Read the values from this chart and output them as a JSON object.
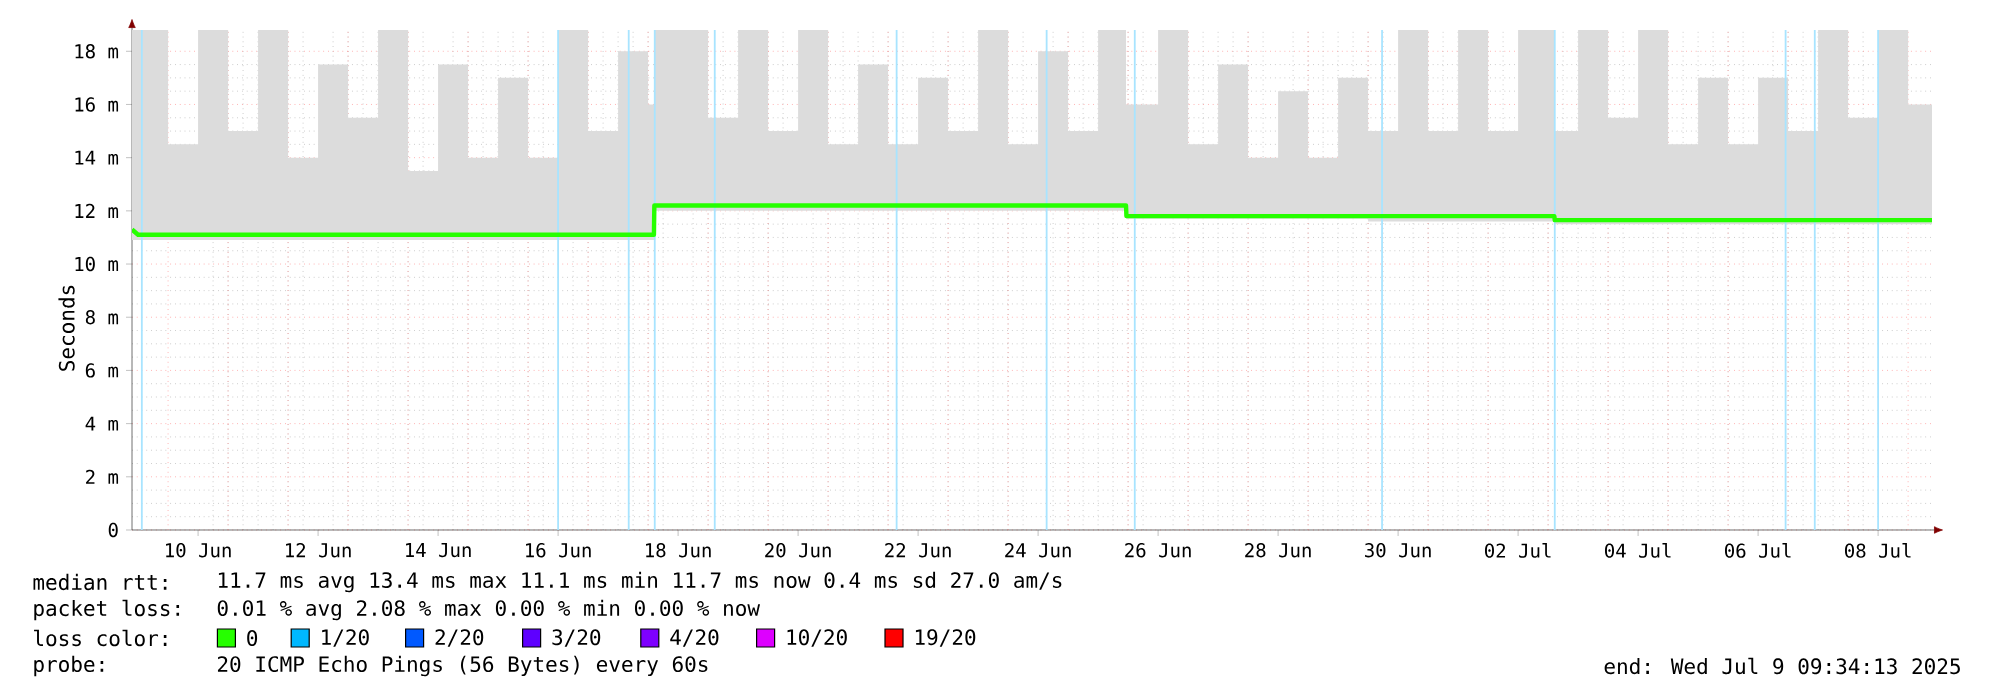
{
  "chart_data": {
    "type": "line",
    "ylabel": "Seconds",
    "xlim": [
      "2025-06-09T09:34",
      "2025-07-09T09:34"
    ],
    "xticks": [
      {
        "value": "2025-06-10T12:00",
        "label": "10 Jun"
      },
      {
        "value": "2025-06-12T12:00",
        "label": "12 Jun"
      },
      {
        "value": "2025-06-14T12:00",
        "label": "14 Jun"
      },
      {
        "value": "2025-06-16T12:00",
        "label": "16 Jun"
      },
      {
        "value": "2025-06-18T12:00",
        "label": "18 Jun"
      },
      {
        "value": "2025-06-20T12:00",
        "label": "20 Jun"
      },
      {
        "value": "2025-06-22T12:00",
        "label": "22 Jun"
      },
      {
        "value": "2025-06-24T12:00",
        "label": "24 Jun"
      },
      {
        "value": "2025-06-26T12:00",
        "label": "26 Jun"
      },
      {
        "value": "2025-06-28T12:00",
        "label": "28 Jun"
      },
      {
        "value": "2025-06-30T12:00",
        "label": "30 Jun"
      },
      {
        "value": "2025-07-02T12:00",
        "label": "02 Jul"
      },
      {
        "value": "2025-07-04T12:00",
        "label": "04 Jul"
      },
      {
        "value": "2025-07-06T12:00",
        "label": "06 Jul"
      },
      {
        "value": "2025-07-08T12:00",
        "label": "08 Jul"
      }
    ],
    "ylim": [
      0,
      18.8
    ],
    "yticks": [
      0,
      {
        "value": 2,
        "label": "2 m"
      },
      {
        "value": 4,
        "label": "4 m"
      },
      {
        "value": 6,
        "label": "6 m"
      },
      {
        "value": 8,
        "label": "8 m"
      },
      {
        "value": 10,
        "label": "10 m"
      },
      {
        "value": 12,
        "label": "12 m"
      },
      {
        "value": 14,
        "label": "14 m"
      },
      {
        "value": 16,
        "label": "16 m"
      },
      {
        "value": 18,
        "label": "18 m"
      }
    ],
    "grid": true,
    "series": [
      {
        "color": "#26ff00",
        "x": [
          "2025-06-09T09:34",
          "2025-06-09T12:00",
          "2025-06-10T00:00",
          "2025-06-10T12:00",
          "2025-06-11T00:00",
          "2025-06-11T12:00",
          "2025-06-12T00:00",
          "2025-06-12T12:00",
          "2025-06-13T00:00",
          "2025-06-13T12:00",
          "2025-06-14T00:00",
          "2025-06-14T12:00",
          "2025-06-15T00:00",
          "2025-06-15T12:00",
          "2025-06-16T00:00",
          "2025-06-16T12:00",
          "2025-06-17T00:00",
          "2025-06-17T12:00",
          "2025-06-18T00:00",
          "2025-06-18T02:20",
          "2025-06-18T02:30",
          "2025-06-18T12:00",
          "2025-06-19T00:00",
          "2025-06-19T12:00",
          "2025-06-20T00:00",
          "2025-06-20T12:00",
          "2025-06-21T00:00",
          "2025-06-21T12:00",
          "2025-06-22T00:00",
          "2025-06-22T12:00",
          "2025-06-23T00:00",
          "2025-06-23T12:00",
          "2025-06-24T00:00",
          "2025-06-24T12:00",
          "2025-06-25T00:00",
          "2025-06-25T12:00",
          "2025-06-25T23:10",
          "2025-06-25T23:20",
          "2025-06-26T12:00",
          "2025-06-27T00:00",
          "2025-06-27T12:00",
          "2025-06-28T00:00",
          "2025-06-28T12:00",
          "2025-06-29T00:00",
          "2025-06-29T12:00",
          "2025-06-30T00:00",
          "2025-06-30T12:00",
          "2025-07-01T00:00",
          "2025-07-01T12:00",
          "2025-07-02T00:00",
          "2025-07-02T12:00",
          "2025-07-03T02:30",
          "2025-07-03T02:40",
          "2025-07-03T12:00",
          "2025-07-04T00:00",
          "2025-07-04T12:00",
          "2025-07-05T00:00",
          "2025-07-05T12:00",
          "2025-07-06T00:00",
          "2025-07-06T12:00",
          "2025-07-07T00:00",
          "2025-07-07T12:00",
          "2025-07-08T00:00",
          "2025-07-08T12:00",
          "2025-07-09T00:00",
          "2025-07-09T09:34"
        ],
        "values": [
          11.3,
          11.1,
          11.1,
          11.1,
          11.1,
          11.1,
          11.1,
          11.1,
          11.1,
          11.1,
          11.1,
          11.1,
          11.1,
          11.1,
          11.1,
          11.1,
          11.1,
          11.1,
          11.1,
          11.1,
          12.2,
          12.2,
          12.2,
          12.2,
          12.2,
          12.2,
          12.2,
          12.2,
          12.2,
          12.2,
          12.2,
          12.2,
          12.2,
          12.2,
          12.2,
          12.2,
          12.2,
          11.8,
          11.8,
          11.8,
          11.8,
          11.8,
          11.8,
          11.8,
          11.8,
          11.8,
          11.8,
          11.8,
          11.8,
          11.8,
          11.8,
          11.8,
          11.65,
          11.65,
          11.65,
          11.65,
          11.65,
          11.65,
          11.65,
          11.65,
          11.65,
          11.65,
          11.65,
          11.65,
          11.65,
          11.65
        ],
        "lower": [
          11.0,
          10.9,
          10.9,
          10.9,
          10.9,
          10.9,
          10.9,
          10.9,
          10.9,
          10.9,
          10.9,
          10.9,
          10.9,
          10.9,
          10.9,
          10.9,
          10.9,
          10.9,
          10.9,
          10.9,
          12.0,
          12.0,
          12.0,
          12.0,
          12.0,
          12.0,
          12.0,
          12.0,
          12.0,
          12.0,
          12.0,
          12.0,
          12.0,
          12.0,
          12.0,
          12.0,
          12.0,
          11.7,
          11.7,
          11.7,
          11.7,
          11.7,
          11.7,
          11.7,
          11.7,
          11.7,
          11.6,
          11.6,
          11.6,
          11.6,
          11.6,
          11.6,
          11.5,
          11.5,
          11.5,
          11.5,
          11.5,
          11.5,
          11.5,
          11.5,
          11.5,
          11.5,
          11.5,
          11.5,
          11.5,
          11.5
        ],
        "upper": [
          18.8,
          18.8,
          14.5,
          18.8,
          15.0,
          18.8,
          14.0,
          17.5,
          15.5,
          18.8,
          13.5,
          17.5,
          14.0,
          17.0,
          14.0,
          18.8,
          15.0,
          18.0,
          16.0,
          16.0,
          18.8,
          18.8,
          15.5,
          18.8,
          15.0,
          18.8,
          14.5,
          17.5,
          14.5,
          17.0,
          15.0,
          18.8,
          14.5,
          18.0,
          15.0,
          18.8,
          16.0,
          16.0,
          18.8,
          14.5,
          17.5,
          14.0,
          16.5,
          14.0,
          17.0,
          15.0,
          18.8,
          15.0,
          18.8,
          15.0,
          18.8,
          15.0,
          15.0,
          18.8,
          15.5,
          18.8,
          14.5,
          17.0,
          14.5,
          17.0,
          15.0,
          18.8,
          15.5,
          18.8,
          16.0,
          18.8
        ]
      }
    ],
    "ref_lines": [
      {
        "axis": "x",
        "value": "2025-06-09T13:30",
        "color": "#a8e4ff"
      },
      {
        "axis": "x",
        "value": "2025-06-16T12:00",
        "color": "#a8e4ff"
      },
      {
        "axis": "x",
        "value": "2025-06-17T16:15",
        "color": "#a8e4ff"
      },
      {
        "axis": "x",
        "value": "2025-06-18T02:40",
        "color": "#a8e4ff"
      },
      {
        "axis": "x",
        "value": "2025-06-19T02:40",
        "color": "#a8e4ff"
      },
      {
        "axis": "x",
        "value": "2025-06-22T03:25",
        "color": "#a8e4ff"
      },
      {
        "axis": "x",
        "value": "2025-06-24T15:25",
        "color": "#a8e4ff"
      },
      {
        "axis": "x",
        "value": "2025-06-26T02:40",
        "color": "#a8e4ff"
      },
      {
        "axis": "x",
        "value": "2025-06-30T05:35",
        "color": "#a8e4ff"
      },
      {
        "axis": "x",
        "value": "2025-07-03T02:40",
        "color": "#a8e4ff"
      },
      {
        "axis": "x",
        "value": "2025-07-06T23:00",
        "color": "#a8e4ff"
      },
      {
        "axis": "x",
        "value": "2025-07-07T10:40",
        "color": "#a8e4ff"
      },
      {
        "axis": "x",
        "value": "2025-07-08T12:00",
        "color": "#a8e4ff"
      }
    ],
    "annotations": [
      "median rtt:",
      "11.7 ms avg  13.4 ms max  11.1 ms min  11.7 ms now  0.4 ms sd  27.0   am/s",
      "packet loss:",
      "0.01 % avg  2.08 % max  0.00 % min  0.00 % now",
      "loss color:",
      "0",
      "1/20",
      "2/20",
      "3/20",
      "4/20",
      "10/20",
      "19/20",
      "probe:",
      "20 ICMP Echo Pings (56 Bytes) every 60s",
      "end: Wed Jul  9 09:34:13 2025"
    ]
  }
}
